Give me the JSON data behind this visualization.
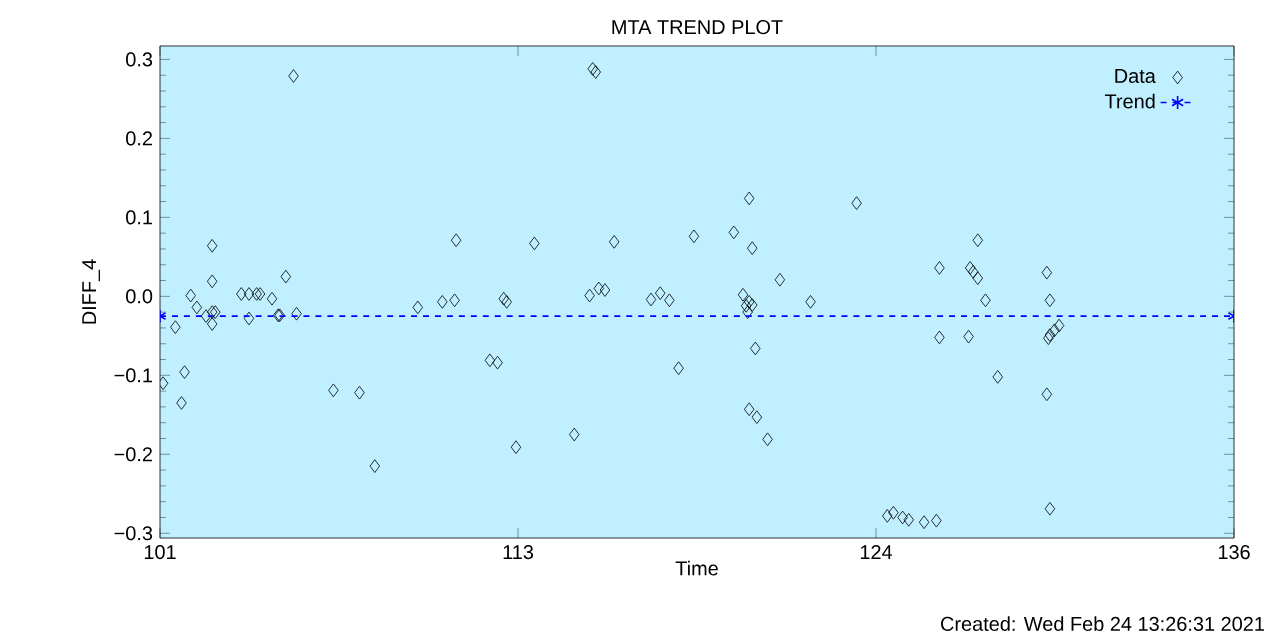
{
  "chart_data": {
    "type": "scatter",
    "title": "MTA TREND PLOT",
    "xlabel": "Time",
    "ylabel": "DIFF_4",
    "annotations": [
      "Created: Wed Feb 24 13:26:31 2021"
    ],
    "xlim": [
      101,
      136
    ],
    "ylim": [
      -0.306,
      0.317
    ],
    "xticks": [
      101,
      {
        "value": 112.667,
        "label": "113"
      },
      {
        "value": 124.333,
        "label": "124"
      },
      136
    ],
    "yticks": [
      {
        "value": -0.3,
        "label": "−0.3"
      },
      {
        "value": -0.2,
        "label": "−0.2"
      },
      {
        "value": -0.1,
        "label": "−0.1"
      },
      {
        "value": 0,
        "label": "0.0"
      },
      0.1,
      0.2,
      0.3
    ],
    "legend": "top right",
    "series": [
      {
        "name": "Data",
        "type": "scatter",
        "marker": "diamond",
        "color": "#000000",
        "x": [
          101.1,
          101.5,
          101.7,
          101.8,
          102.0,
          102.2,
          102.5,
          102.7,
          102.8,
          102.7,
          102.7,
          102.7,
          103.65,
          103.9,
          104.15,
          104.26,
          103.9,
          104.65,
          104.85,
          104.9,
          105.1,
          105.35,
          105.45,
          106.65,
          107.5,
          108.0,
          109.4,
          110.2,
          110.6,
          110.65,
          111.75,
          112.0,
          112.2,
          112.3,
          112.6,
          113.2,
          114.5,
          115.1,
          115.2,
          115.0,
          115.3,
          115.5,
          115.8,
          117.0,
          117.3,
          117.6,
          117.9,
          118.4,
          119.7,
          120.0,
          120.2,
          120.3,
          120.1,
          120.2,
          120.3,
          120.15,
          120.4,
          120.2,
          120.45,
          120.8,
          121.2,
          122.2,
          123.7,
          124.7,
          124.9,
          125.2,
          125.4,
          125.9,
          126.3,
          126.4,
          126.4,
          127.35,
          127.4,
          127.5,
          127.65,
          127.65,
          127.9,
          128.3,
          129.9,
          130.0,
          129.9,
          130.0,
          129.95,
          130.0,
          130.15,
          130.3
        ],
        "values": [
          -0.11,
          -0.039,
          -0.135,
          -0.096,
          0.001,
          -0.014,
          -0.025,
          -0.02,
          -0.02,
          -0.035,
          0.019,
          0.064,
          0.003,
          0.003,
          0.003,
          0.003,
          -0.028,
          -0.003,
          -0.024,
          -0.024,
          0.025,
          0.279,
          -0.022,
          -0.119,
          -0.122,
          -0.215,
          -0.014,
          -0.007,
          -0.005,
          0.071,
          -0.081,
          -0.084,
          -0.003,
          -0.007,
          -0.191,
          0.067,
          -0.175,
          0.288,
          0.284,
          0.001,
          0.01,
          0.008,
          0.069,
          -0.004,
          0.004,
          -0.005,
          -0.091,
          0.076,
          0.081,
          0.002,
          0.124,
          0.061,
          -0.012,
          -0.007,
          -0.011,
          -0.02,
          -0.066,
          -0.143,
          -0.153,
          -0.181,
          0.021,
          -0.007,
          0.118,
          -0.278,
          -0.274,
          -0.28,
          -0.283,
          -0.286,
          -0.284,
          0.036,
          -0.052,
          -0.051,
          0.036,
          0.031,
          0.023,
          0.071,
          -0.005,
          -0.102,
          0.03,
          -0.005,
          -0.124,
          -0.269,
          -0.053,
          -0.049,
          -0.043,
          -0.037
        ]
      },
      {
        "name": "Trend",
        "type": "line",
        "marker": "cross",
        "line_style": "dashed",
        "color": "#0000ff",
        "x": [
          101,
          136
        ],
        "values": [
          -0.025,
          -0.025
        ]
      }
    ]
  }
}
